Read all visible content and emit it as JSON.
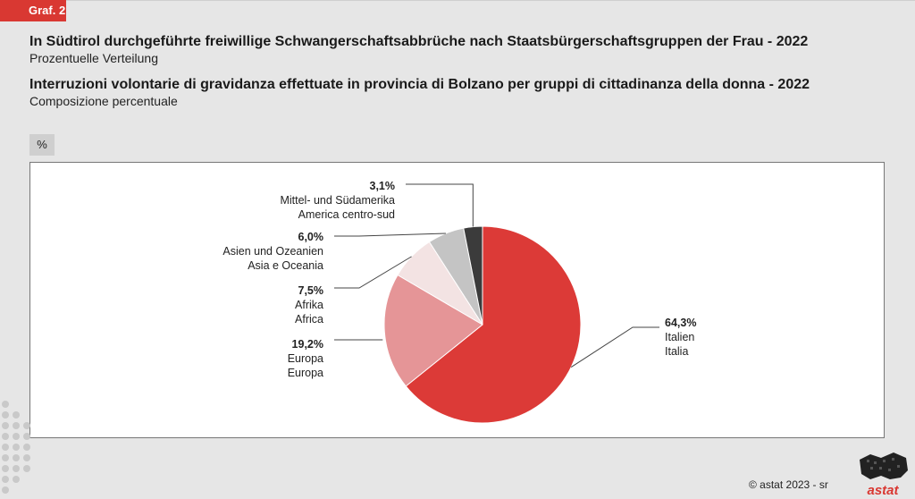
{
  "header": {
    "badge": "Graf. 2",
    "title_de": "In Südtirol durchgeführte freiwillige Schwangerschaftsabbrüche nach Staatsbürgerschaftsgruppen der Frau - 2022",
    "subtitle_de": "Prozentuelle Verteilung",
    "title_it": "Interruzioni volontarie di gravidanza effettuate in provincia di Bolzano per gruppi di cittadinanza della donna - 2022",
    "subtitle_it": "Composizione percentuale"
  },
  "unit": "%",
  "footer": {
    "copyright": "©  astat 2023 - sr",
    "logo_text": "astat"
  },
  "colors": {
    "accent": "#d93832",
    "italien": "#dc3a37",
    "europa": "#e59597",
    "afrika": "#f3e3e3",
    "asien": "#c4c4c4",
    "amerika": "#3b3b3b"
  },
  "chart_data": {
    "type": "pie",
    "unit": "%",
    "slices": [
      {
        "value": 64.3,
        "value_label": "64,3%",
        "label_de": "Italien",
        "label_it": "Italia",
        "color": "#dc3a37"
      },
      {
        "value": 19.2,
        "value_label": "19,2%",
        "label_de": "Europa",
        "label_it": "Europa",
        "color": "#e59597"
      },
      {
        "value": 7.5,
        "value_label": "7,5%",
        "label_de": "Afrika",
        "label_it": "Africa",
        "color": "#f3e3e3"
      },
      {
        "value": 6.0,
        "value_label": "6,0%",
        "label_de": "Asien und Ozeanien",
        "label_it": "Asia e Oceania",
        "color": "#c4c4c4"
      },
      {
        "value": 3.1,
        "value_label": "3,1%",
        "label_de": "Mittel- und Südamerika",
        "label_it": "America centro-sud",
        "color": "#3b3b3b"
      }
    ]
  }
}
